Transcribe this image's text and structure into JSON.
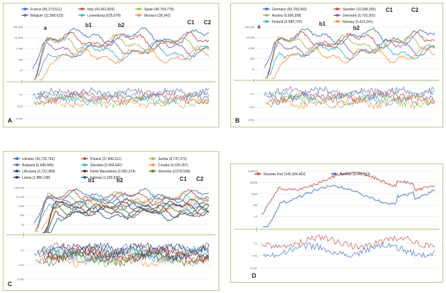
{
  "chart_data": [
    {
      "type": "line",
      "panel_label": "A",
      "peak_labels": [
        "a",
        "b1",
        "b2",
        "C1",
        "C2"
      ],
      "series": [
        {
          "name": "France (65,273,511)",
          "color": "#4472c4"
        },
        {
          "name": "Italy (60,461,826)",
          "color": "#c0504d"
        },
        {
          "name": "Spain (46,754,778)",
          "color": "#9bbb59"
        },
        {
          "name": "Belgium (11,589,623)",
          "color": "#8064a2"
        },
        {
          "name": "Luxemburg (625,978)",
          "color": "#4bacc6"
        },
        {
          "name": "Monaco (39,242)",
          "color": "#f79646"
        }
      ],
      "y_top_ticks": [
        "100 000",
        "10 000",
        "1 000",
        "100",
        "10",
        "1"
      ],
      "y_bottom_ticks": [
        "1",
        "0.1",
        "0.01",
        "0.001"
      ],
      "legend": "top"
    },
    {
      "type": "line",
      "panel_label": "B",
      "peak_labels": [
        "a",
        "b1",
        "b2",
        "C1",
        "C2"
      ],
      "series": [
        {
          "name": "Germany (83,783,942)",
          "color": "#4472c4"
        },
        {
          "name": "Sweden (10,099,265)",
          "color": "#c0504d"
        },
        {
          "name": "Austria (9,006,398)",
          "color": "#9bbb59"
        },
        {
          "name": "Denmark (5,792,202)",
          "color": "#8064a2"
        },
        {
          "name": "Finland (5,540,720)",
          "color": "#4bacc6"
        },
        {
          "name": "Norway (5,421,241)",
          "color": "#f79646"
        }
      ],
      "y_top_ticks": [
        "100 000",
        "10 000",
        "1 000",
        "100",
        "10",
        "1"
      ],
      "y_bottom_ticks": [
        "1",
        "0.1",
        "0.01",
        "0.001"
      ],
      "legend": "top"
    },
    {
      "type": "line",
      "panel_label": "C",
      "peak_labels": [
        "b1",
        "b2",
        "C1",
        "C2"
      ],
      "series": [
        {
          "name": "Ukraine (43,733,762)",
          "color": "#4472c4"
        },
        {
          "name": "Poland (37,846,611)",
          "color": "#c0504d"
        },
        {
          "name": "Serbia (8,737,371)",
          "color": "#9bbb59"
        },
        {
          "name": "Bulgaria (6,948,445)",
          "color": "#8064a2"
        },
        {
          "name": "Slovakia (5,459,642)",
          "color": "#4bacc6"
        },
        {
          "name": "Croatia (4,105,267)",
          "color": "#f79646"
        },
        {
          "name": "Lithuania (2,722,289)",
          "color": "#2c4d75"
        },
        {
          "name": "North Macedonia (2,083,374)",
          "color": "#772c2a"
        },
        {
          "name": "Slovenia (2,078,938)",
          "color": "#5f7530"
        },
        {
          "name": "Latvia (1,886,198)",
          "color": "#4d3b62"
        },
        {
          "name": "Estonia (1,326,535)",
          "color": "#276a7c"
        }
      ],
      "y_top_ticks": [
        "100 000",
        "10 000",
        "1 000",
        "100",
        "10",
        "1"
      ],
      "y_bottom_ticks": [
        "1",
        "0.1",
        "0.01",
        "0.001"
      ],
      "legend": "top"
    },
    {
      "type": "line",
      "panel_label": "D",
      "peak_labels": [],
      "series": [
        {
          "name": "Russian Fed (145,934,462)",
          "color": "#c0504d"
        },
        {
          "name": "Belarus (9,449,323)",
          "color": "#4472c4"
        }
      ],
      "y_top_ticks": [
        "100000",
        "10000",
        "1000",
        "100",
        "10",
        "1"
      ],
      "y_bottom_ticks": [
        "1",
        "0.1",
        "0.01",
        "0.001"
      ],
      "legend": "top"
    }
  ]
}
